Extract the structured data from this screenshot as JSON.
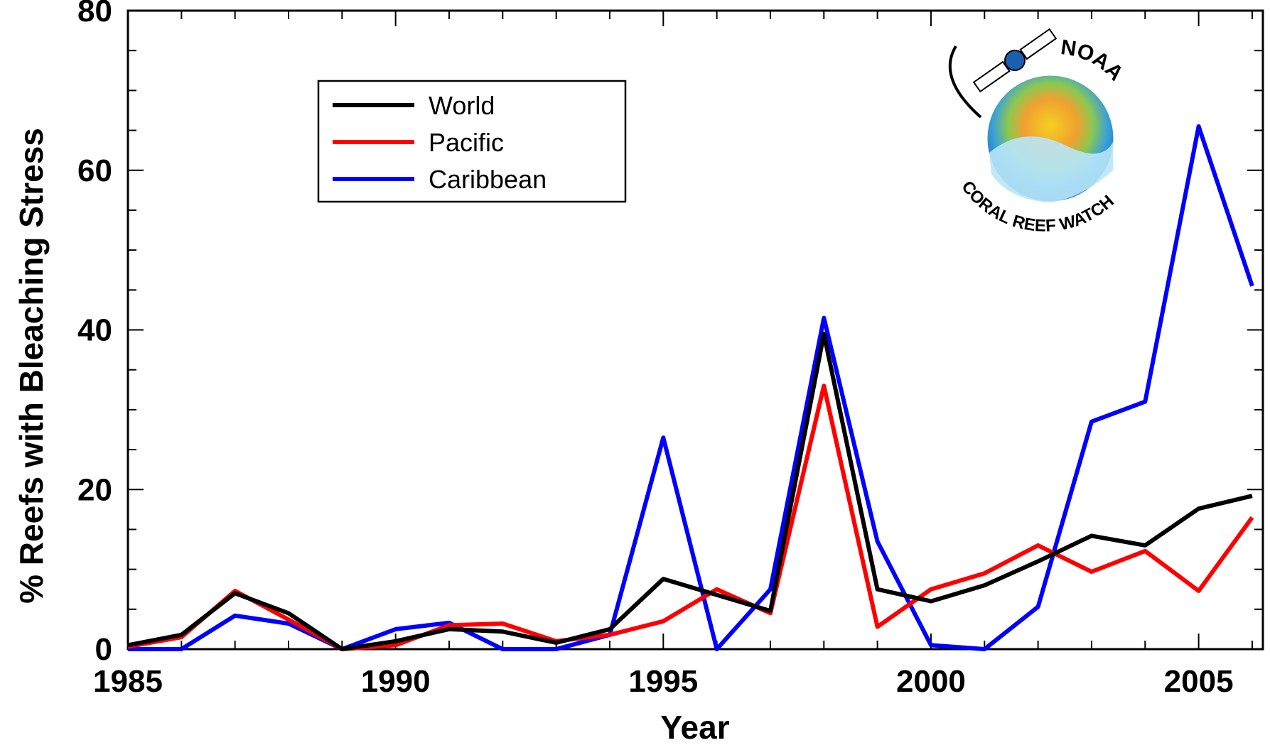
{
  "chart_data": {
    "type": "line",
    "title": "",
    "xlabel": "Year",
    "ylabel": "% Reefs with Bleaching Stress",
    "xlim": [
      1985,
      2006.2
    ],
    "ylim": [
      0,
      80
    ],
    "x_ticks": [
      1985,
      1990,
      1995,
      2000,
      2005
    ],
    "y_ticks": [
      0,
      20,
      40,
      60,
      80
    ],
    "legend_position": "top-left",
    "x": [
      1985,
      1986,
      1987,
      1988,
      1989,
      1990,
      1991,
      1992,
      1993,
      1994,
      1995,
      1996,
      1997,
      1998,
      1999,
      2000,
      2001,
      2002,
      2003,
      2004,
      2005,
      2006
    ],
    "series": [
      {
        "name": "World",
        "color": "#000000",
        "values": [
          0.5,
          1.8,
          7.0,
          4.5,
          0,
          1.0,
          2.5,
          2.2,
          0.8,
          2.5,
          8.8,
          6.8,
          4.8,
          39.5,
          7.5,
          6.0,
          8.0,
          11.0,
          14.2,
          13.0,
          17.6,
          19.2
        ]
      },
      {
        "name": "Pacific",
        "color": "#ff0000",
        "values": [
          0.3,
          1.5,
          7.3,
          3.7,
          0,
          0.5,
          3.0,
          3.2,
          1.0,
          1.8,
          3.5,
          7.5,
          4.5,
          33.0,
          2.8,
          7.5,
          9.5,
          13.0,
          9.7,
          12.3,
          7.3,
          16.5
        ]
      },
      {
        "name": "Caribbean",
        "color": "#0000ff",
        "values": [
          0,
          0,
          4.2,
          3.2,
          0,
          2.5,
          3.3,
          0,
          0,
          1.8,
          26.5,
          0,
          7.5,
          41.5,
          13.5,
          0.5,
          0,
          5.3,
          28.5,
          31.0,
          65.5,
          45.5
        ]
      }
    ]
  },
  "logo": {
    "top_text": "NOAA",
    "bottom_text": "CORAL REEF WATCH"
  }
}
